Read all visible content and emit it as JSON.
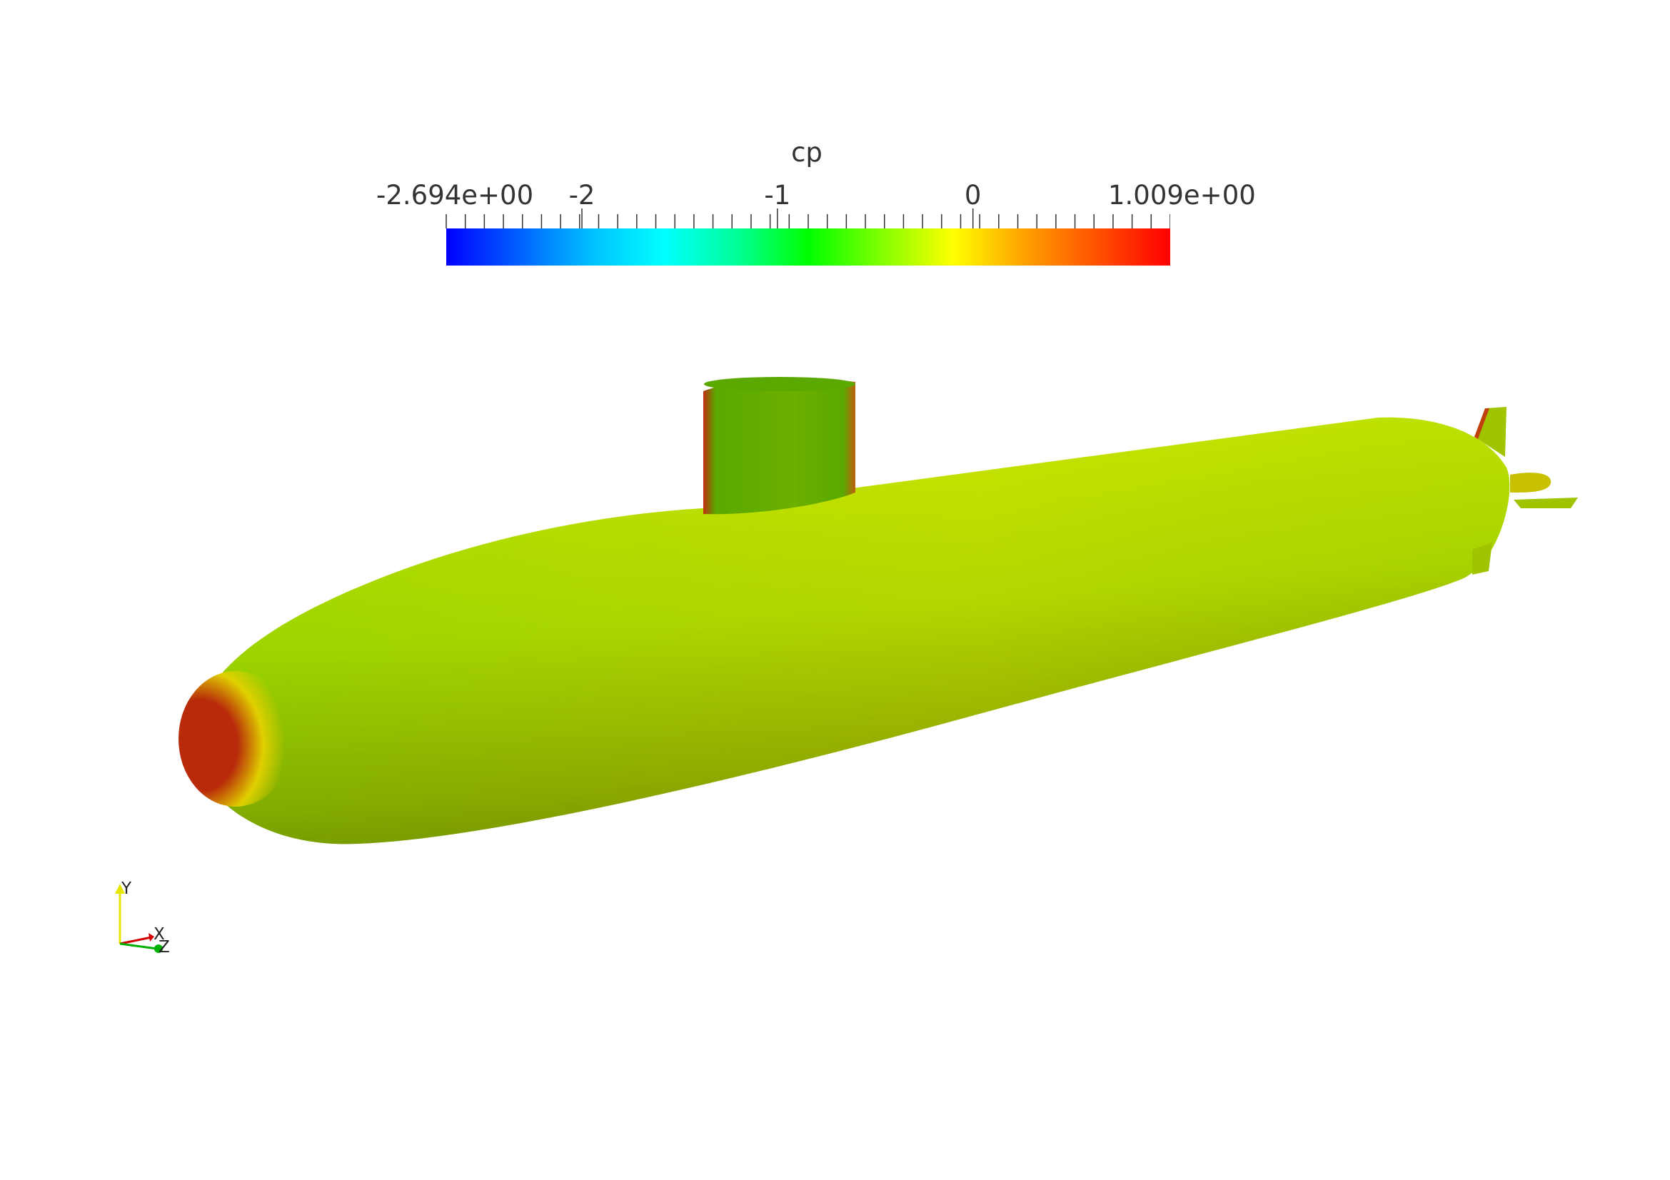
{
  "colorbar": {
    "title": "cp",
    "min_label": "-2.694e+00",
    "max_label": "1.009e+00",
    "min": -2.694,
    "max": 1.009,
    "major_ticks": [
      {
        "value": -2,
        "label": "-2"
      },
      {
        "value": -1,
        "label": "-1"
      },
      {
        "value": 0,
        "label": "0"
      }
    ],
    "minor_tick_count": 38,
    "colormap": [
      "#0000ff",
      "#0060ff",
      "#00c0ff",
      "#00ffff",
      "#00ff9a",
      "#00ff00",
      "#80ff00",
      "#ffff00",
      "#ffa000",
      "#ff5000",
      "#ff0000"
    ]
  },
  "axes_widget": {
    "labels": {
      "y": "Y",
      "x": "X",
      "z": "Z"
    },
    "colors": {
      "y": "#e6e600",
      "x": "#d40000",
      "z": "#00b000"
    }
  },
  "model": {
    "colors": {
      "hull": "#a8d400",
      "hull_highlight": "#c8e800",
      "hull_shadow": "#5a6a00",
      "bow_stagnation": "#b82a0a",
      "bow_ring": "#e0d000",
      "sail": "#5aa800",
      "sail_edge": "#c03010",
      "fins": "#a0c400"
    }
  }
}
